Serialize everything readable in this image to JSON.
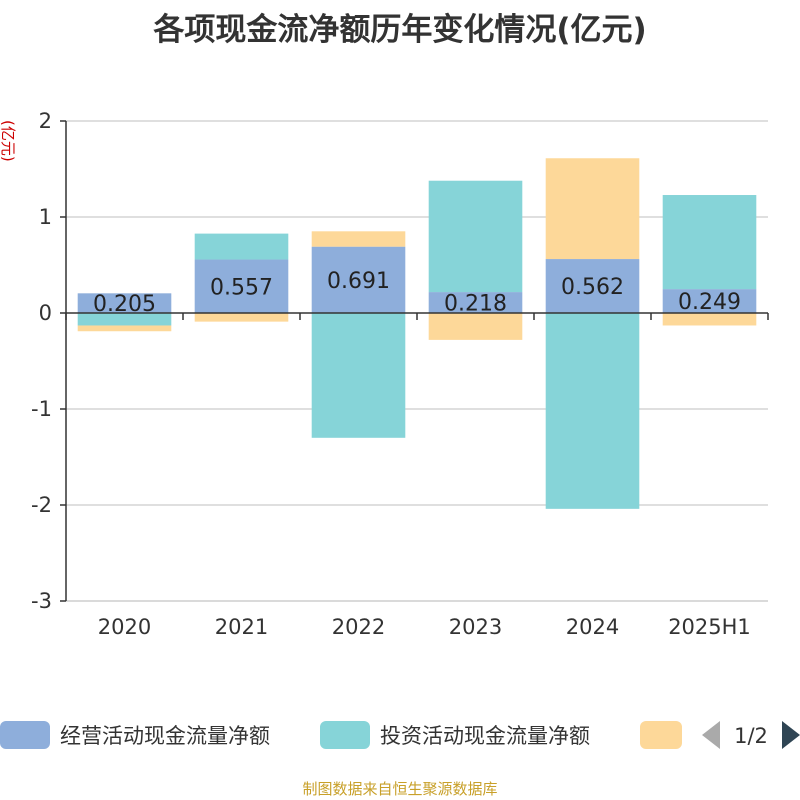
{
  "chart_data": {
    "type": "bar",
    "stacked": true,
    "title": "各项现金流净额历年变化情况(亿元)",
    "ylabel": "(亿元)",
    "categories": [
      "2020",
      "2021",
      "2022",
      "2023",
      "2024",
      "2025H1"
    ],
    "ylim": [
      -3,
      2
    ],
    "yticks": [
      2,
      1,
      0,
      -1,
      -2,
      -3
    ],
    "grid": true,
    "series": [
      {
        "name": "经营活动现金流量净额",
        "color": "#8eaedb",
        "values": [
          0.205,
          0.557,
          0.691,
          0.218,
          0.562,
          0.249
        ],
        "labels": [
          "0.205",
          "0.557",
          "0.691",
          "0.218",
          "0.562",
          "0.249"
        ]
      },
      {
        "name": "投资活动现金流量净额",
        "color": "#86d4d8",
        "values": [
          -0.13,
          0.27,
          -1.3,
          1.16,
          -2.04,
          0.98
        ]
      },
      {
        "name": "",
        "color": "#fdd899",
        "values": [
          -0.06,
          -0.09,
          0.16,
          -0.28,
          1.05,
          -0.13
        ]
      }
    ],
    "legend": {
      "position": "bottom",
      "page": "1/2"
    }
  },
  "footer": "制图数据来自恒生聚源数据库"
}
